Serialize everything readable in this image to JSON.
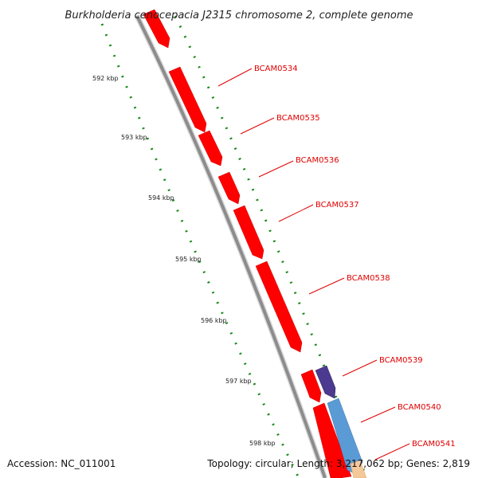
{
  "title": "Burkholderia cenocepacia J2315 chromosome 2, complete genome",
  "accession": "Accession: NC_011001",
  "summary": "Topology: circular; Length: 3,217,062 bp; Genes: 2,819",
  "kbp_ticks": [
    "592 kbp",
    "593 kbp",
    "594 kbp",
    "595 kbp",
    "596 kbp",
    "597 kbp",
    "598 kbp"
  ],
  "genes": [
    {
      "label": "BCAM0534",
      "color": "#ff0000"
    },
    {
      "label": "BCAM0535",
      "color": "#ff0000"
    },
    {
      "label": "BCAM0536",
      "color": "#ff0000"
    },
    {
      "label": "BCAM0537",
      "color": "#ff0000"
    },
    {
      "label": "BCAM0538",
      "color": "#ff0000"
    },
    {
      "label": "BCAM0539",
      "color": "#ff0000"
    },
    {
      "label": "BCAM0540",
      "color": "#ff0000"
    },
    {
      "label": "BCAM0541",
      "color": "#ff0000"
    }
  ],
  "extra_features": [
    {
      "color": "#4b3a8f"
    },
    {
      "color": "#5b9bd5"
    },
    {
      "color": "#f5c89a"
    }
  ],
  "colors": {
    "backbone": "#8c8c8c",
    "dots": "#1a8a1a",
    "label": "#e00000"
  }
}
